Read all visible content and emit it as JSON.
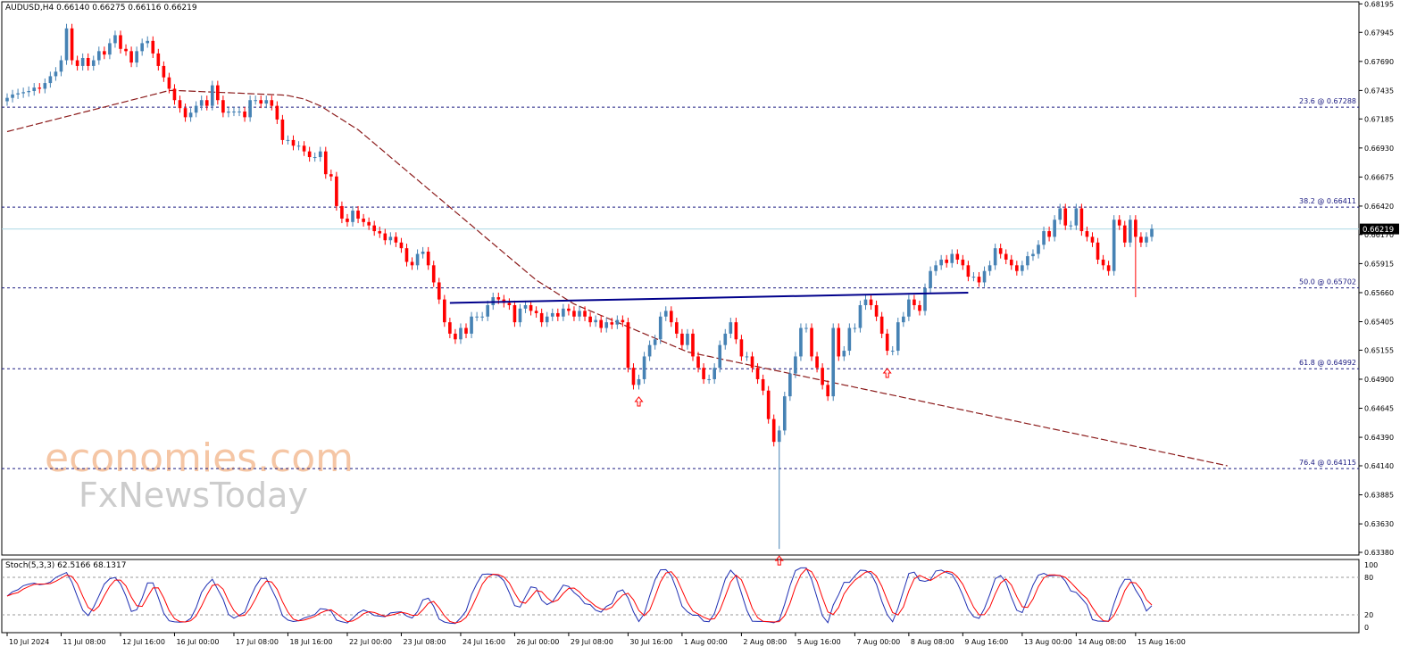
{
  "header": {
    "symbol": "AUDUSD,H4",
    "ohlc": "0.66140 0.66275 0.66116 0.66219"
  },
  "stoch_header": "Stoch(5,3,3) 62.5166 68.1317",
  "colors": {
    "bull": "#4682b4",
    "bear": "#ff0000",
    "ma": "#8b1a1a",
    "fib_line": "#1a1a80",
    "neckline": "#00008b",
    "price_line": "#add8e6",
    "stoch_main": "#1f2fb3",
    "stoch_signal": "#ff0000",
    "arrow": "#ff0000",
    "watermark": "#f5c6a5",
    "watermark2": "#cfcfcf"
  },
  "watermark": {
    "line1": "economies.com",
    "line2": "FxNewsToday"
  },
  "chart_data": [
    {
      "type": "candlestick",
      "title": "AUDUSD,H4",
      "ylim": [
        0.6338,
        0.6819
      ],
      "y_ticks": [
        "0.68195",
        "0.67945",
        "0.67690",
        "0.67435",
        "0.67185",
        "0.66930",
        "0.66675",
        "0.66420",
        "0.66170",
        "0.65915",
        "0.65660",
        "0.65405",
        "0.65155",
        "0.64900",
        "0.64645",
        "0.64390",
        "0.64140",
        "0.63885",
        "0.63630",
        "0.63380"
      ],
      "x_ticks": [
        "10 Jul 2024",
        "11 Jul 08:00",
        "12 Jul 16:00",
        "16 Jul 00:00",
        "17 Jul 08:00",
        "18 Jul 16:00",
        "22 Jul 00:00",
        "23 Jul 08:00",
        "24 Jul 16:00",
        "26 Jul 00:00",
        "29 Jul 08:00",
        "30 Jul 16:00",
        "1 Aug 00:00",
        "2 Aug 08:00",
        "5 Aug 16:00",
        "7 Aug 00:00",
        "8 Aug 08:00",
        "9 Aug 16:00",
        "13 Aug 00:00",
        "14 Aug 08:00",
        "15 Aug 16:00"
      ],
      "current_price": "0.66219",
      "fib_levels": [
        {
          "label": "23.6 @ 0.67288",
          "value": 0.67288
        },
        {
          "label": "38.2 @ 0.66411",
          "value": 0.66411
        },
        {
          "label": "50.0 @ 0.65702",
          "value": 0.65702
        },
        {
          "label": "61.8 @ 0.64992",
          "value": 0.64992
        },
        {
          "label": "76.4 @ 0.64115",
          "value": 0.64115
        }
      ],
      "neckline": {
        "start_index": 82,
        "end_index": 178,
        "start_value": 0.6557,
        "end_value": 0.6566
      },
      "arrows_at_index": [
        117,
        143,
        163
      ],
      "series": [
        {
          "name": "close",
          "values": [
            0.6737,
            0.674,
            0.6741,
            0.6742,
            0.6743,
            0.6746,
            0.6745,
            0.675,
            0.6756,
            0.676,
            0.677,
            0.6798,
            0.677,
            0.6765,
            0.6772,
            0.6765,
            0.677,
            0.6778,
            0.6775,
            0.6785,
            0.6792,
            0.678,
            0.6778,
            0.6768,
            0.6778,
            0.6785,
            0.6787,
            0.6776,
            0.6765,
            0.6755,
            0.6745,
            0.6735,
            0.6728,
            0.672,
            0.6724,
            0.673,
            0.6735,
            0.673,
            0.6748,
            0.6735,
            0.6724,
            0.6725,
            0.6725,
            0.6725,
            0.672,
            0.6735,
            0.6735,
            0.6732,
            0.6735,
            0.673,
            0.6718,
            0.67,
            0.67,
            0.6695,
            0.6695,
            0.669,
            0.6685,
            0.6685,
            0.669,
            0.667,
            0.6668,
            0.6642,
            0.6631,
            0.6628,
            0.6638,
            0.6631,
            0.6628,
            0.6625,
            0.662,
            0.6618,
            0.6612,
            0.6615,
            0.661,
            0.6605,
            0.6593,
            0.659,
            0.66,
            0.6602,
            0.659,
            0.6575,
            0.656,
            0.654,
            0.653,
            0.6525,
            0.6535,
            0.653,
            0.6545,
            0.6545,
            0.6545,
            0.6555,
            0.6562,
            0.656,
            0.6557,
            0.6555,
            0.654,
            0.6552,
            0.6555,
            0.655,
            0.6548,
            0.654,
            0.6545,
            0.6548,
            0.6545,
            0.6552,
            0.655,
            0.6545,
            0.655,
            0.6545,
            0.654,
            0.6542,
            0.6535,
            0.654,
            0.6538,
            0.6542,
            0.654,
            0.65,
            0.6485,
            0.649,
            0.651,
            0.652,
            0.6525,
            0.6545,
            0.655,
            0.654,
            0.653,
            0.652,
            0.653,
            0.651,
            0.65,
            0.649,
            0.649,
            0.65,
            0.652,
            0.653,
            0.654,
            0.6525,
            0.651,
            0.651,
            0.65,
            0.649,
            0.648,
            0.6455,
            0.6435,
            0.6445,
            0.6475,
            0.6495,
            0.651,
            0.6535,
            0.6535,
            0.651,
            0.65,
            0.6485,
            0.6475,
            0.6535,
            0.651,
            0.6515,
            0.6535,
            0.6535,
            0.6555,
            0.656,
            0.6555,
            0.6545,
            0.653,
            0.6515,
            0.6515,
            0.654,
            0.6545,
            0.656,
            0.6555,
            0.655,
            0.657,
            0.6585,
            0.659,
            0.6595,
            0.6592,
            0.66,
            0.6595,
            0.659,
            0.658,
            0.658,
            0.6575,
            0.6585,
            0.659,
            0.6605,
            0.66,
            0.6595,
            0.659,
            0.6585,
            0.659,
            0.6598,
            0.66,
            0.6608,
            0.662,
            0.6615,
            0.663,
            0.664,
            0.6625,
            0.6625,
            0.664,
            0.662,
            0.6615,
            0.661,
            0.6595,
            0.659,
            0.6585,
            0.663,
            0.6625,
            0.661,
            0.663,
            0.6615,
            0.661,
            0.6615,
            0.6622
          ]
        },
        {
          "name": "MA",
          "values": [
            0.67074,
            0.67086,
            0.67098,
            0.6711,
            0.67122,
            0.67134,
            0.67146,
            0.67158,
            0.6717,
            0.67182,
            0.67194,
            0.67206,
            0.67218,
            0.6723,
            0.67242,
            0.67254,
            0.67266,
            0.67278,
            0.6729,
            0.67302,
            0.67314,
            0.67326,
            0.67338,
            0.6735,
            0.67362,
            0.67374,
            0.67386,
            0.67398,
            0.6741,
            0.67422,
            0.67434,
            0.67435,
            0.67433,
            0.67431,
            0.67429,
            0.67427,
            0.67425,
            0.67423,
            0.67421,
            0.67419,
            0.67417,
            0.67415,
            0.67413,
            0.67411,
            0.67409,
            0.67407,
            0.67405,
            0.67403,
            0.67401,
            0.67399,
            0.67397,
            0.67395,
            0.6739,
            0.6738,
            0.6737,
            0.6736,
            0.6734,
            0.6732,
            0.673,
            0.6727,
            0.6724,
            0.6721,
            0.6718,
            0.6715,
            0.6712,
            0.6709,
            0.6705,
            0.6701,
            0.6697,
            0.6693,
            0.6689,
            0.6685,
            0.6681,
            0.6677,
            0.6673,
            0.6669,
            0.6665,
            0.6661,
            0.6657,
            0.6653,
            0.6649,
            0.6645,
            0.6641,
            0.6637,
            0.6633,
            0.6629,
            0.6625,
            0.6621,
            0.6617,
            0.6613,
            0.6609,
            0.6605,
            0.6601,
            0.6597,
            0.6593,
            0.6589,
            0.6585,
            0.6581,
            0.6577,
            0.6574,
            0.6571,
            0.6568,
            0.6565,
            0.6562,
            0.6559,
            0.6556,
            0.6554,
            0.6552,
            0.655,
            0.6548,
            0.6546,
            0.6544,
            0.6542,
            0.654,
            0.6538,
            0.6536,
            0.6534,
            0.6532,
            0.653,
            0.6528,
            0.6526,
            0.6524,
            0.6522,
            0.652,
            0.6518,
            0.6516,
            0.6514,
            0.6513,
            0.6512,
            0.6511,
            0.651,
            0.6509,
            0.6508,
            0.6507,
            0.6506,
            0.6505,
            0.6504,
            0.6503,
            0.6502,
            0.6501,
            0.65,
            0.6499,
            0.6498,
            0.6497,
            0.6496,
            0.6495,
            0.6494,
            0.6493,
            0.6492,
            0.6491,
            0.649,
            0.6489,
            0.6488,
            0.6487,
            0.6486,
            0.6485,
            0.6484,
            0.6483,
            0.6482,
            0.6481,
            0.648,
            0.6479,
            0.6478,
            0.6477,
            0.6476,
            0.6475,
            0.6474,
            0.6473,
            0.6472,
            0.6471,
            0.647,
            0.6469,
            0.6468,
            0.6467,
            0.6466,
            0.6465,
            0.6464,
            0.6463,
            0.6462,
            0.6461,
            0.646,
            0.6459,
            0.6458,
            0.6457,
            0.6456,
            0.6455,
            0.6454,
            0.6453,
            0.6452,
            0.6451,
            0.645,
            0.6449,
            0.6448,
            0.6447,
            0.6446,
            0.6445,
            0.6444,
            0.6443,
            0.6442,
            0.6441,
            0.644,
            0.6439,
            0.6438,
            0.6437,
            0.6436,
            0.6435,
            0.6434,
            0.6433,
            0.6432,
            0.6431,
            0.643,
            0.6429,
            0.6428,
            0.6427,
            0.6426,
            0.6425,
            0.6424,
            0.6423,
            0.6422,
            0.6421,
            0.642,
            0.6419,
            0.6418,
            0.6417,
            0.6416,
            0.6415,
            0.6414
          ]
        }
      ]
    },
    {
      "type": "line",
      "title": "Stoch(5,3,3) 62.5166 68.1317",
      "ylim": [
        0,
        100
      ],
      "y_ticks": [
        "100",
        "80",
        "20",
        "0"
      ],
      "levels": [
        80,
        20
      ]
    }
  ]
}
